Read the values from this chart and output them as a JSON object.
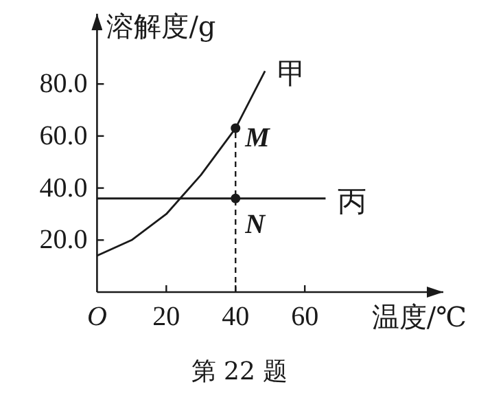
{
  "chart_data": {
    "type": "line",
    "xlabel": "温度/℃",
    "ylabel": "溶解度/g",
    "xlim": [
      0,
      100
    ],
    "ylim": [
      0,
      107
    ],
    "xticks": [
      {
        "value": 0,
        "label": "O"
      },
      20,
      40,
      60
    ],
    "yticks": [
      {
        "value": 20,
        "label": "20.0"
      },
      {
        "value": 40,
        "label": "40.0"
      },
      {
        "value": 60,
        "label": "60.0"
      },
      {
        "value": 80,
        "label": "80.0"
      }
    ],
    "series": [
      {
        "name": "甲",
        "type": "line",
        "color": "#1a1a1a",
        "x": [
          0,
          10,
          20,
          24,
          30,
          40,
          48.5
        ],
        "values": [
          14,
          20,
          30,
          36,
          45,
          63,
          85
        ]
      },
      {
        "name": "丙",
        "type": "line",
        "color": "#1a1a1a",
        "x": [
          0,
          66
        ],
        "values": [
          36,
          36
        ]
      },
      {
        "type": "scatter",
        "color": "#1a1a1a",
        "marker": "circle",
        "x": [
          40,
          40
        ],
        "values": [
          63,
          36
        ]
      }
    ],
    "ref_lines": [
      {
        "axis": "x",
        "value": 40,
        "line_style": "dashed",
        "color": "#1a1a1a"
      }
    ],
    "annotations": [
      {
        "text": "M",
        "x": 40,
        "y": 63
      },
      {
        "text": "N",
        "x": 40,
        "y": 36
      },
      "第 22 题"
    ],
    "grid": false,
    "legend": false
  }
}
